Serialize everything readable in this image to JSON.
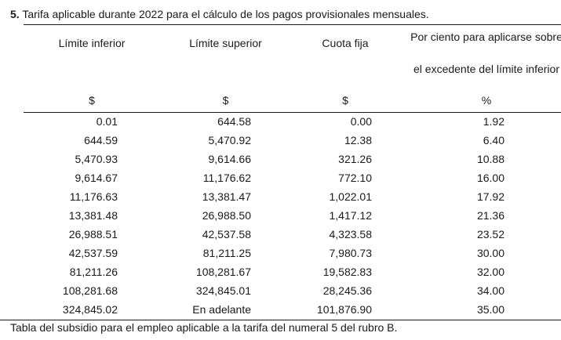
{
  "heading": {
    "number": "5.",
    "text": "Tarifa aplicable durante 2022 para el cálculo de los pagos provisionales mensuales."
  },
  "table": {
    "headers": {
      "limite_inferior": "Límite inferior",
      "limite_superior": "Límite superior",
      "cuota_fija": "Cuota fija",
      "por_ciento_line1": "Por ciento para aplicarse sobre",
      "por_ciento_line2": "el excedente del límite inferior"
    },
    "units": [
      "$",
      "$",
      "$",
      "%"
    ],
    "rows": [
      [
        "0.01",
        "644.58",
        "0.00",
        "1.92"
      ],
      [
        "644.59",
        "5,470.92",
        "12.38",
        "6.40"
      ],
      [
        "5,470.93",
        "9,614.66",
        "321.26",
        "10.88"
      ],
      [
        "9,614.67",
        "11,176.62",
        "772.10",
        "16.00"
      ],
      [
        "11,176.63",
        "13,381.47",
        "1,022.01",
        "17.92"
      ],
      [
        "13,381.48",
        "26,988.50",
        "1,417.12",
        "21.36"
      ],
      [
        "26,988.51",
        "42,537.58",
        "4,323.58",
        "23.52"
      ],
      [
        "42,537.59",
        "81,211.25",
        "7,980.73",
        "30.00"
      ],
      [
        "81,211.26",
        "108,281.67",
        "19,582.83",
        "32.00"
      ],
      [
        "108,281.68",
        "324,845.01",
        "28,245.36",
        "34.00"
      ],
      [
        "324,845.02",
        "En adelante",
        "101,876.90",
        "35.00"
      ]
    ]
  },
  "footer": "Tabla del subsidio para el empleo aplicable a la tarifa del numeral 5 del rubro B."
}
